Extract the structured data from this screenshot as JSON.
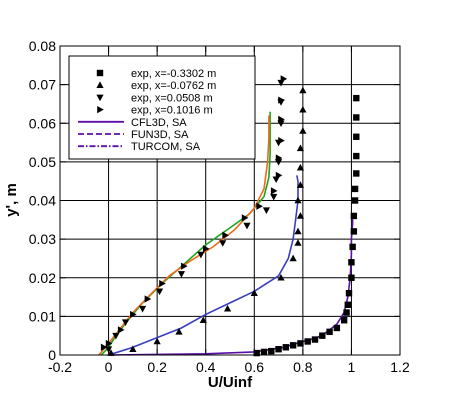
{
  "chart_data": {
    "type": "scatter",
    "xlabel": "U/Uinf",
    "ylabel": "y', m",
    "xlim": [
      -0.2,
      1.2
    ],
    "ylim": [
      0,
      0.08
    ],
    "xticks": [
      -0.2,
      0,
      0.2,
      0.4,
      0.6,
      0.8,
      1,
      1.2
    ],
    "xtick_labels": [
      "-0.2",
      "0",
      "0.2",
      "0.4",
      "0.6",
      "0.8",
      "1",
      "1.2"
    ],
    "yticks": [
      0,
      0.01,
      0.02,
      0.03,
      0.04,
      0.05,
      0.06,
      0.07,
      0.08
    ],
    "ytick_labels": [
      "0",
      "0.01",
      "0.02",
      "0.03",
      "0.04",
      "0.05",
      "0.06",
      "0.07",
      "0.08"
    ],
    "grid": true,
    "legend_position": "top-left",
    "legend": [
      {
        "label": "exp, x=-0.3302 m",
        "kind": "marker",
        "marker": "square",
        "color": "#000000"
      },
      {
        "label": "exp, x=-0.0762 m",
        "kind": "marker",
        "marker": "triangle-up",
        "color": "#000000"
      },
      {
        "label": "exp, x=0.0508 m",
        "kind": "marker",
        "marker": "triangle-down",
        "color": "#000000"
      },
      {
        "label": "exp, x=0.1016 m",
        "kind": "marker",
        "marker": "triangle-right",
        "color": "#000000"
      },
      {
        "label": "CFL3D, SA",
        "kind": "line",
        "dash": "solid",
        "color": "#5b0fa8"
      },
      {
        "label": "FUN3D, SA",
        "kind": "line",
        "dash": "dashed",
        "color": "#5b0fa8"
      },
      {
        "label": "TURCOM, SA",
        "kind": "line",
        "dash": "dashdot",
        "color": "#5b0fa8"
      }
    ],
    "exp_series": [
      {
        "label": "exp, x=-0.3302 m",
        "marker": "square",
        "color": "#000000",
        "points": [
          [
            1.02,
            0.0665
          ],
          [
            1.02,
            0.0615
          ],
          [
            1.02,
            0.0565
          ],
          [
            1.02,
            0.0515
          ],
          [
            1.02,
            0.047
          ],
          [
            1.015,
            0.043
          ],
          [
            1.015,
            0.04
          ],
          [
            1.01,
            0.036
          ],
          [
            1.01,
            0.032
          ],
          [
            1.005,
            0.028
          ],
          [
            1.0,
            0.024
          ],
          [
            1.0,
            0.02
          ],
          [
            0.99,
            0.016
          ],
          [
            0.985,
            0.013
          ],
          [
            0.98,
            0.011
          ],
          [
            0.97,
            0.009
          ],
          [
            0.94,
            0.007
          ],
          [
            0.91,
            0.006
          ],
          [
            0.88,
            0.005
          ],
          [
            0.85,
            0.004
          ],
          [
            0.82,
            0.0035
          ],
          [
            0.79,
            0.003
          ],
          [
            0.76,
            0.0025
          ],
          [
            0.73,
            0.002
          ],
          [
            0.7,
            0.0015
          ],
          [
            0.67,
            0.001
          ],
          [
            0.64,
            0.0008
          ],
          [
            0.61,
            0.0005
          ]
        ]
      },
      {
        "label": "exp, x=-0.0762 m",
        "marker": "triangle-up",
        "color": "#000000",
        "points": [
          [
            0.8,
            0.0685
          ],
          [
            0.8,
            0.0635
          ],
          [
            0.8,
            0.058
          ],
          [
            0.79,
            0.0535
          ],
          [
            0.79,
            0.0485
          ],
          [
            0.79,
            0.044
          ],
          [
            0.78,
            0.04
          ],
          [
            0.79,
            0.036
          ],
          [
            0.78,
            0.032
          ],
          [
            0.78,
            0.029
          ],
          [
            0.76,
            0.025
          ],
          [
            0.71,
            0.02
          ],
          [
            0.6,
            0.016
          ],
          [
            0.49,
            0.012
          ],
          [
            0.39,
            0.009
          ],
          [
            0.29,
            0.006
          ],
          [
            0.2,
            0.0035
          ],
          [
            0.1,
            0.0015
          ],
          [
            0.01,
            0.0005
          ]
        ]
      },
      {
        "label": "exp, x=0.0508 m",
        "marker": "triangle-down",
        "color": "#000000",
        "points": [
          [
            0.71,
            0.0705
          ],
          [
            0.71,
            0.0655
          ],
          [
            0.71,
            0.06
          ],
          [
            0.7,
            0.055
          ],
          [
            0.7,
            0.05
          ],
          [
            0.69,
            0.0455
          ],
          [
            0.68,
            0.041
          ],
          [
            0.65,
            0.0375
          ],
          [
            0.57,
            0.0335
          ],
          [
            0.47,
            0.029
          ],
          [
            0.38,
            0.026
          ],
          [
            0.3,
            0.021
          ],
          [
            0.21,
            0.0165
          ],
          [
            0.14,
            0.012
          ],
          [
            0.07,
            0.0085
          ],
          [
            0.03,
            0.005
          ],
          [
            0.0,
            0.0015
          ]
        ]
      },
      {
        "label": "exp, x=0.1016 m",
        "marker": "triangle-right",
        "color": "#000000",
        "points": [
          [
            0.72,
            0.0715
          ],
          [
            0.71,
            0.066
          ],
          [
            0.71,
            0.061
          ],
          [
            0.71,
            0.0555
          ],
          [
            0.7,
            0.051
          ],
          [
            0.7,
            0.0465
          ],
          [
            0.68,
            0.0425
          ],
          [
            0.62,
            0.0385
          ],
          [
            0.56,
            0.0355
          ],
          [
            0.48,
            0.031
          ],
          [
            0.4,
            0.0275
          ],
          [
            0.31,
            0.023
          ],
          [
            0.22,
            0.0185
          ],
          [
            0.16,
            0.0145
          ],
          [
            0.1,
            0.0105
          ],
          [
            0.05,
            0.0065
          ],
          [
            0.0,
            0.003
          ],
          [
            -0.02,
            0.002
          ]
        ]
      }
    ],
    "cfd_series": [
      {
        "color": "#5b0fa8",
        "dash": "solid",
        "points": [
          [
            0.0,
            0.0
          ],
          [
            0.4,
            0.0003
          ],
          [
            0.6,
            0.0008
          ],
          [
            0.72,
            0.002
          ],
          [
            0.8,
            0.0035
          ],
          [
            0.86,
            0.0045
          ],
          [
            0.9,
            0.006
          ],
          [
            0.94,
            0.008
          ],
          [
            0.97,
            0.011
          ],
          [
            0.985,
            0.015
          ],
          [
            0.995,
            0.02
          ],
          [
            1.0,
            0.026
          ],
          [
            1.0,
            0.03
          ],
          [
            1.005,
            0.034
          ],
          [
            1.005,
            0.036
          ]
        ]
      },
      {
        "color": "#3a3ec0",
        "dash": "solid",
        "points": [
          [
            0.0,
            0.0
          ],
          [
            0.1,
            0.002
          ],
          [
            0.2,
            0.0045
          ],
          [
            0.3,
            0.007
          ],
          [
            0.4,
            0.0105
          ],
          [
            0.5,
            0.0135
          ],
          [
            0.6,
            0.0165
          ],
          [
            0.7,
            0.0205
          ],
          [
            0.74,
            0.025
          ],
          [
            0.76,
            0.03
          ],
          [
            0.77,
            0.035
          ],
          [
            0.78,
            0.04
          ],
          [
            0.78,
            0.045
          ],
          [
            0.775,
            0.0465
          ]
        ]
      },
      {
        "color": "#1ca51c",
        "dash": "solid",
        "points": [
          [
            -0.03,
            0.0
          ],
          [
            0.0,
            0.002
          ],
          [
            0.03,
            0.005
          ],
          [
            0.08,
            0.009
          ],
          [
            0.14,
            0.0135
          ],
          [
            0.22,
            0.0185
          ],
          [
            0.31,
            0.0235
          ],
          [
            0.4,
            0.0285
          ],
          [
            0.49,
            0.0325
          ],
          [
            0.58,
            0.0365
          ],
          [
            0.64,
            0.041
          ],
          [
            0.66,
            0.046
          ],
          [
            0.665,
            0.052
          ],
          [
            0.665,
            0.058
          ],
          [
            0.665,
            0.063
          ]
        ]
      },
      {
        "color": "#f06a1e",
        "dash": "solid",
        "points": [
          [
            -0.04,
            0.0
          ],
          [
            0.0,
            0.003
          ],
          [
            0.05,
            0.007
          ],
          [
            0.1,
            0.011
          ],
          [
            0.17,
            0.0155
          ],
          [
            0.25,
            0.0205
          ],
          [
            0.34,
            0.0245
          ],
          [
            0.43,
            0.028
          ],
          [
            0.52,
            0.0325
          ],
          [
            0.6,
            0.038
          ],
          [
            0.64,
            0.043
          ],
          [
            0.655,
            0.05
          ],
          [
            0.66,
            0.056
          ],
          [
            0.66,
            0.062
          ]
        ]
      }
    ]
  }
}
